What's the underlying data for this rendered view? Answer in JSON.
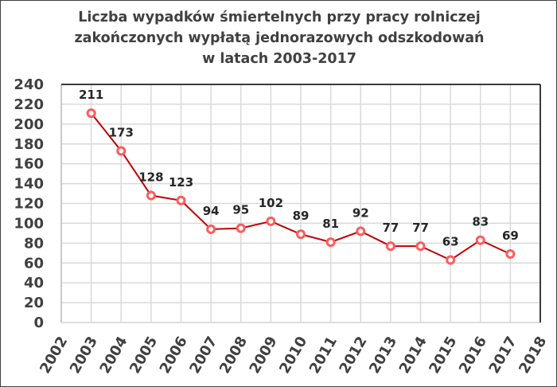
{
  "chart_data": {
    "type": "line",
    "title_lines": [
      "Liczba wypadków śmiertelnych przy pracy rolniczej",
      "zakończonych wypłatą jednorazowych odszkodowań",
      "w latach 2003-2017"
    ],
    "xlabel": "",
    "ylabel": "",
    "x": [
      2003,
      2004,
      2005,
      2006,
      2007,
      2008,
      2009,
      2010,
      2011,
      2012,
      2013,
      2014,
      2015,
      2016,
      2017
    ],
    "series": [
      {
        "name": "Liczba wypadków",
        "values": [
          211,
          173,
          128,
          123,
          94,
          95,
          102,
          89,
          81,
          92,
          77,
          77,
          63,
          83,
          69
        ],
        "color": "#C00000",
        "marker_color": "#FF5B5B"
      }
    ],
    "xlim": [
      2002,
      2018
    ],
    "ylim": [
      0,
      240
    ],
    "y_step": 20,
    "x_ticks": [
      "2002",
      "2003",
      "2004",
      "2005",
      "2006",
      "2007",
      "2008",
      "2009",
      "2010",
      "2011",
      "2012",
      "2013",
      "2014",
      "2015",
      "2016",
      "2017",
      "2018"
    ],
    "y_ticks": [
      "0",
      "20",
      "40",
      "60",
      "80",
      "100",
      "120",
      "140",
      "160",
      "180",
      "200",
      "220",
      "240"
    ],
    "grid": true,
    "legend": "none",
    "data_labels": true
  }
}
